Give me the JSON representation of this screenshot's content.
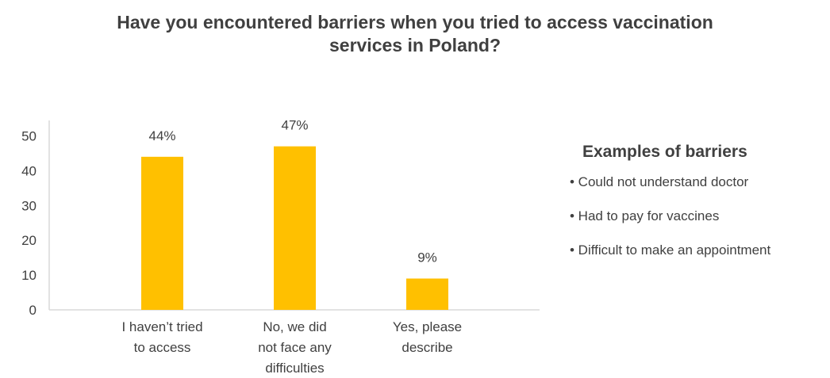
{
  "title_lines": [
    "Have you encountered barriers when you tried to access vaccination",
    "services in Poland?"
  ],
  "chart_data": {
    "type": "bar",
    "categories": [
      [
        "I haven’t tried",
        "to access"
      ],
      [
        "No, we did",
        "not face any",
        "difficulties"
      ],
      [
        "Yes, please",
        "describe"
      ]
    ],
    "values": [
      44,
      47,
      9
    ],
    "data_labels": [
      "44%",
      "47%",
      "9%"
    ],
    "yticks": [
      "0",
      "10",
      "20",
      "30",
      "40",
      "50"
    ],
    "ylim": [
      0,
      50
    ],
    "grid": false,
    "bar_color": "#FFC000",
    "axis_color": "#d9d9d9"
  },
  "barriers": {
    "heading": "Examples of barriers",
    "items": [
      "• Could not understand doctor",
      "• Had to pay for vaccines",
      "• Difficult to make an appointment"
    ]
  }
}
